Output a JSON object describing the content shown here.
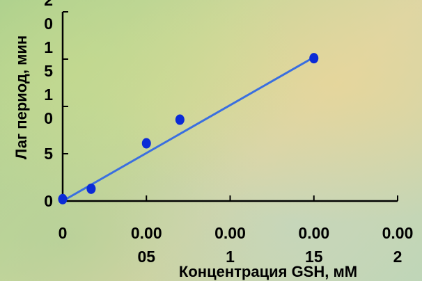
{
  "chart_data": {
    "type": "scatter",
    "xlabel": "Концентрация GSH,  мМ",
    "ylabel": "Лаг период, мин",
    "xlim": [
      0,
      0.02
    ],
    "ylim": [
      0,
      20
    ],
    "x_ticks": [
      {
        "value": 0,
        "lines": [
          "0"
        ]
      },
      {
        "value": 0.005,
        "lines": [
          "0.00",
          "05"
        ]
      },
      {
        "value": 0.01,
        "lines": [
          "0.00",
          "1"
        ]
      },
      {
        "value": 0.015,
        "lines": [
          "0.00",
          "15"
        ]
      },
      {
        "value": 0.02,
        "lines": [
          "0.00",
          "2"
        ]
      }
    ],
    "y_ticks": [
      {
        "value": 0,
        "lines": [
          "0"
        ]
      },
      {
        "value": 5,
        "lines": [
          "5"
        ]
      },
      {
        "value": 10,
        "lines": [
          "1",
          "0"
        ]
      },
      {
        "value": 15,
        "lines": [
          "1",
          "5"
        ]
      },
      {
        "value": 20,
        "lines": [
          "2",
          "0"
        ]
      }
    ],
    "series": [
      {
        "type": "scatter",
        "color": "#0b2bd6",
        "points": [
          {
            "x": 0,
            "y": 0.2
          },
          {
            "x": 0.0017,
            "y": 1.3
          },
          {
            "x": 0.005,
            "y": 6.1
          },
          {
            "x": 0.007,
            "y": 8.6
          },
          {
            "x": 0.015,
            "y": 15.1
          }
        ]
      },
      {
        "type": "line",
        "color": "#3a6fe0",
        "points": [
          {
            "x": 0,
            "y": 0
          },
          {
            "x": 0.015,
            "y": 15.2
          }
        ]
      }
    ]
  }
}
